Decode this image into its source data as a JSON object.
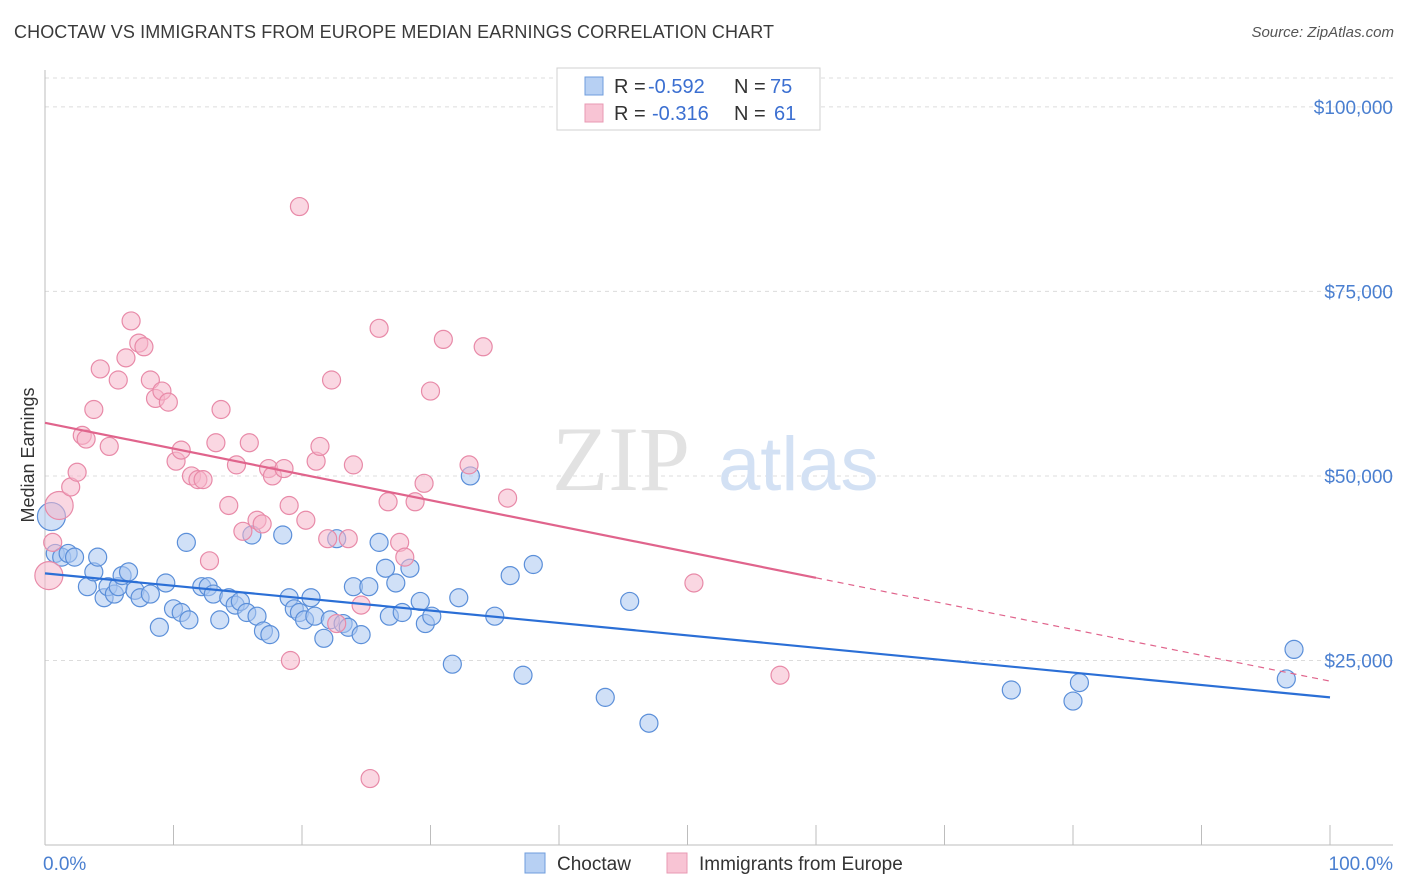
{
  "title": "CHOCTAW VS IMMIGRANTS FROM EUROPE MEDIAN EARNINGS CORRELATION CHART",
  "source": "Source: ZipAtlas.com",
  "watermark": {
    "zip": "ZIP",
    "atlas": "atlas"
  },
  "legend": {
    "row1": {
      "r_label": "R = ",
      "r_value": "-0.592",
      "n_label": "N = ",
      "n_value": "75"
    },
    "row2": {
      "r_label": "R = ",
      "r_value": "-0.316",
      "n_label": "N = ",
      "n_value": "61"
    }
  },
  "bottom_legend": {
    "series1": "Choctaw",
    "series2": "Immigrants from Europe"
  },
  "chart_data": {
    "type": "scatter",
    "xlabel": "",
    "ylabel": "Median Earnings",
    "xlim": [
      0,
      100
    ],
    "ylim": [
      0,
      105000
    ],
    "x_tick_labels": [
      "0.0%",
      "100.0%"
    ],
    "y_ticks": [
      25000,
      50000,
      75000,
      100000
    ],
    "y_tick_labels": [
      "$25,000",
      "$50,000",
      "$75,000",
      "$100,000"
    ],
    "grid": true,
    "colors": {
      "blue_fill": "#a9c6f0",
      "blue_stroke": "#5b8fd9",
      "blue_line": "#2b6fd6",
      "pink_fill": "#f6b6cb",
      "pink_stroke": "#e88aa8",
      "pink_line": "#e0648c"
    },
    "series": [
      {
        "name": "Choctaw",
        "trend": {
          "x": [
            0,
            100
          ],
          "y": [
            36800,
            20000
          ]
        },
        "points": [
          [
            0.5,
            44500
          ],
          [
            0.8,
            39500
          ],
          [
            1.3,
            39000
          ],
          [
            1.8,
            39500
          ],
          [
            2.3,
            39000
          ],
          [
            3.3,
            35000
          ],
          [
            3.8,
            37000
          ],
          [
            4.1,
            39000
          ],
          [
            4.6,
            33500
          ],
          [
            4.9,
            35000
          ],
          [
            5.4,
            34000
          ],
          [
            5.7,
            35000
          ],
          [
            6.0,
            36500
          ],
          [
            6.5,
            37000
          ],
          [
            7.0,
            34500
          ],
          [
            7.4,
            33500
          ],
          [
            8.2,
            34000
          ],
          [
            8.9,
            29500
          ],
          [
            9.4,
            35500
          ],
          [
            10.0,
            32000
          ],
          [
            10.6,
            31500
          ],
          [
            11.0,
            41000
          ],
          [
            11.2,
            30500
          ],
          [
            12.2,
            35000
          ],
          [
            12.7,
            35000
          ],
          [
            13.1,
            34000
          ],
          [
            13.6,
            30500
          ],
          [
            14.3,
            33500
          ],
          [
            14.8,
            32500
          ],
          [
            15.2,
            33000
          ],
          [
            15.7,
            31500
          ],
          [
            16.1,
            42000
          ],
          [
            16.5,
            31000
          ],
          [
            17.0,
            29000
          ],
          [
            17.5,
            28500
          ],
          [
            18.5,
            42000
          ],
          [
            19.0,
            33500
          ],
          [
            19.4,
            32000
          ],
          [
            19.8,
            31500
          ],
          [
            20.2,
            30500
          ],
          [
            20.7,
            33500
          ],
          [
            21.0,
            31000
          ],
          [
            21.7,
            28000
          ],
          [
            22.2,
            30500
          ],
          [
            22.7,
            41500
          ],
          [
            23.2,
            30000
          ],
          [
            23.6,
            29500
          ],
          [
            24.0,
            35000
          ],
          [
            24.6,
            28500
          ],
          [
            25.2,
            35000
          ],
          [
            26.0,
            41000
          ],
          [
            26.5,
            37500
          ],
          [
            26.8,
            31000
          ],
          [
            27.3,
            35500
          ],
          [
            27.8,
            31500
          ],
          [
            28.4,
            37500
          ],
          [
            29.2,
            33000
          ],
          [
            29.6,
            30000
          ],
          [
            30.1,
            31000
          ],
          [
            31.7,
            24500
          ],
          [
            32.2,
            33500
          ],
          [
            33.1,
            50000
          ],
          [
            35.0,
            31000
          ],
          [
            36.2,
            36500
          ],
          [
            37.2,
            23000
          ],
          [
            38.0,
            38000
          ],
          [
            43.6,
            20000
          ],
          [
            45.5,
            33000
          ],
          [
            47.0,
            16500
          ],
          [
            75.2,
            21000
          ],
          [
            80.0,
            19500
          ],
          [
            80.5,
            22000
          ],
          [
            96.6,
            22500
          ],
          [
            97.2,
            26500
          ]
        ]
      },
      {
        "name": "Immigrants from Europe",
        "trend": {
          "x": [
            0,
            60
          ],
          "y": [
            57200,
            36200
          ]
        },
        "trend_dashed": {
          "x": [
            60,
            100
          ],
          "y": [
            36200,
            22200
          ]
        },
        "points": [
          [
            0.3,
            36500
          ],
          [
            0.6,
            41000
          ],
          [
            1.1,
            46000
          ],
          [
            2.0,
            48500
          ],
          [
            2.5,
            50500
          ],
          [
            2.9,
            55500
          ],
          [
            3.2,
            55000
          ],
          [
            3.8,
            59000
          ],
          [
            4.3,
            64500
          ],
          [
            5.0,
            54000
          ],
          [
            5.7,
            63000
          ],
          [
            6.3,
            66000
          ],
          [
            6.7,
            71000
          ],
          [
            7.3,
            68000
          ],
          [
            7.7,
            67500
          ],
          [
            8.2,
            63000
          ],
          [
            8.6,
            60500
          ],
          [
            9.1,
            61500
          ],
          [
            9.6,
            60000
          ],
          [
            10.2,
            52000
          ],
          [
            10.6,
            53500
          ],
          [
            11.4,
            50000
          ],
          [
            11.9,
            49500
          ],
          [
            12.3,
            49500
          ],
          [
            12.8,
            38500
          ],
          [
            13.3,
            54500
          ],
          [
            13.7,
            59000
          ],
          [
            14.3,
            46000
          ],
          [
            14.9,
            51500
          ],
          [
            15.4,
            42500
          ],
          [
            15.9,
            54500
          ],
          [
            16.5,
            44000
          ],
          [
            16.9,
            43500
          ],
          [
            17.4,
            51000
          ],
          [
            17.7,
            50000
          ],
          [
            18.6,
            51000
          ],
          [
            19.0,
            46000
          ],
          [
            19.1,
            25000
          ],
          [
            19.8,
            86500
          ],
          [
            20.3,
            44000
          ],
          [
            21.1,
            52000
          ],
          [
            21.4,
            54000
          ],
          [
            22.0,
            41500
          ],
          [
            22.3,
            63000
          ],
          [
            22.7,
            30000
          ],
          [
            23.6,
            41500
          ],
          [
            24.0,
            51500
          ],
          [
            24.6,
            32500
          ],
          [
            25.3,
            9000
          ],
          [
            26.0,
            70000
          ],
          [
            26.7,
            46500
          ],
          [
            27.6,
            41000
          ],
          [
            28.0,
            39000
          ],
          [
            28.8,
            46500
          ],
          [
            29.5,
            49000
          ],
          [
            30.0,
            61500
          ],
          [
            31.0,
            68500
          ],
          [
            33.0,
            51500
          ],
          [
            34.1,
            67500
          ],
          [
            36.0,
            47000
          ],
          [
            50.5,
            35500
          ],
          [
            57.2,
            23000
          ]
        ]
      }
    ]
  }
}
